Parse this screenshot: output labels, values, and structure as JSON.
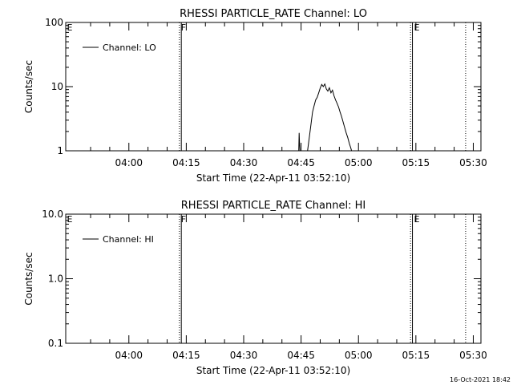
{
  "chart_data": [
    {
      "type": "line",
      "title": "RHESSI PARTICLE_RATE Channel: LO",
      "xlabel": "Start Time (22-Apr-11 03:52:10)",
      "ylabel": "Counts/sec",
      "yscale": "log",
      "ylim": [
        1,
        100
      ],
      "xlim_minutes": [
        223.5,
        332.0
      ],
      "y_ticks": [
        {
          "v": 1,
          "label": "1"
        },
        {
          "v": 10,
          "label": "10"
        },
        {
          "v": 100,
          "label": "100"
        }
      ],
      "x_ticks": [
        {
          "m": 240,
          "label": "04:00"
        },
        {
          "m": 255,
          "label": "04:15"
        },
        {
          "m": 270,
          "label": "04:30"
        },
        {
          "m": 285,
          "label": "04:45"
        },
        {
          "m": 300,
          "label": "05:00"
        },
        {
          "m": 315,
          "label": "05:15"
        },
        {
          "m": 330,
          "label": "05:30"
        }
      ],
      "legend": {
        "position": "top-left",
        "entries": [
          "Channel: LO"
        ]
      },
      "markers": [
        {
          "m": 253.2,
          "label": "F",
          "style": "dotted"
        },
        {
          "m": 253.7,
          "label": "",
          "style": "solid"
        },
        {
          "m": 313.6,
          "label": "",
          "style": "dotted"
        },
        {
          "m": 314.1,
          "label": "E",
          "style": "solid"
        },
        {
          "m": 328.0,
          "label": "",
          "style": "dotted"
        }
      ],
      "edge_labels": [
        {
          "m": 223.6,
          "label": "E"
        }
      ],
      "series": [
        {
          "x": [
            284.4,
            284.5,
            284.6,
            284.7,
            284.9,
            286.7,
            287.2,
            287.6,
            288.0,
            288.4,
            288.8,
            289.2,
            289.6,
            290.0,
            290.4,
            290.8,
            291.2,
            291.6,
            292.0,
            292.4,
            292.8,
            293.2,
            293.6,
            294.0,
            294.4,
            294.8,
            295.2,
            295.6,
            296.0,
            296.4,
            296.8,
            297.2,
            297.6,
            298.0,
            298.2
          ],
          "y": [
            1.0,
            1.9,
            1.3,
            1.0,
            1.0,
            1.0,
            1.7,
            2.6,
            4.0,
            5.0,
            6.2,
            6.8,
            8.0,
            9.5,
            10.8,
            10.0,
            11.0,
            9.2,
            8.5,
            9.6,
            8.0,
            8.8,
            7.2,
            6.2,
            5.5,
            4.8,
            4.0,
            3.4,
            2.8,
            2.3,
            1.9,
            1.6,
            1.3,
            1.1,
            1.0
          ]
        }
      ]
    },
    {
      "type": "line",
      "title": "RHESSI PARTICLE_RATE Channel: HI",
      "xlabel": "Start Time (22-Apr-11 03:52:10)",
      "ylabel": "Counts/sec",
      "yscale": "log",
      "ylim": [
        0.1,
        10
      ],
      "xlim_minutes": [
        223.5,
        332.0
      ],
      "y_ticks": [
        {
          "v": 0.1,
          "label": "0.1"
        },
        {
          "v": 1,
          "label": "1.0"
        },
        {
          "v": 10,
          "label": "10.0"
        }
      ],
      "x_ticks": [
        {
          "m": 240,
          "label": "04:00"
        },
        {
          "m": 255,
          "label": "04:15"
        },
        {
          "m": 270,
          "label": "04:30"
        },
        {
          "m": 285,
          "label": "04:45"
        },
        {
          "m": 300,
          "label": "05:00"
        },
        {
          "m": 315,
          "label": "05:15"
        },
        {
          "m": 330,
          "label": "05:30"
        }
      ],
      "legend": {
        "position": "top-left",
        "entries": [
          "Channel: HI"
        ]
      },
      "markers": [
        {
          "m": 253.2,
          "label": "F",
          "style": "dotted"
        },
        {
          "m": 253.7,
          "label": "",
          "style": "solid"
        },
        {
          "m": 313.6,
          "label": "",
          "style": "dotted"
        },
        {
          "m": 314.1,
          "label": "E",
          "style": "solid"
        },
        {
          "m": 328.0,
          "label": "",
          "style": "dotted"
        }
      ],
      "edge_labels": [
        {
          "m": 223.6,
          "label": "E"
        }
      ],
      "series": [
        {
          "x": [],
          "y": []
        }
      ]
    }
  ],
  "footer": {
    "timestamp": "16-Oct-2021 18:42"
  }
}
